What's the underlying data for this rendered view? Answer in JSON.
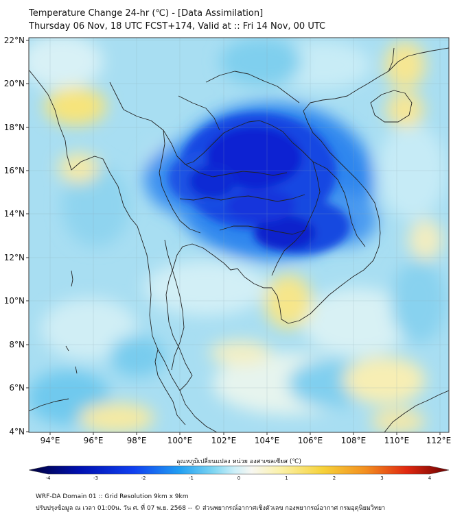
{
  "title_line1": "Temperature Change 24-hr (℃) - [Data Assimilation]",
  "title_line2": "Thursday 06 Nov, 18 UTC FCST+174, Valid at :: Fri 14 Nov, 00 UTC",
  "map": {
    "lon_range": [
      93,
      112.4
    ],
    "lat_range": [
      4,
      22.2
    ],
    "lat_ticks": [
      "22°N",
      "20°N",
      "18°N",
      "16°N",
      "14°N",
      "12°N",
      "10°N",
      "8°N",
      "6°N",
      "4°N"
    ],
    "lon_ticks": [
      "94°E",
      "96°E",
      "98°E",
      "100°E",
      "102°E",
      "104°E",
      "106°E",
      "108°E",
      "110°E",
      "112°E"
    ],
    "lat_values": [
      22,
      20,
      18,
      16,
      14,
      12,
      10,
      8,
      6,
      4
    ],
    "lon_values": [
      94,
      96,
      98,
      100,
      102,
      104,
      106,
      108,
      110,
      112
    ]
  },
  "colorbar": {
    "title": "อุณหภูมิเปลี่ยนแปลง หน่วย องศาเซลเซียส (℃)",
    "labels": [
      "-4",
      "-3",
      "-2",
      "-1",
      "0",
      "1",
      "2",
      "3",
      "4"
    ],
    "values": [
      -4,
      -3,
      -2,
      -1,
      0,
      1,
      2,
      3,
      4
    ]
  },
  "footer_line1": "WRF-DA Domain 01 :: Grid Resolution 9km x 9km",
  "footer_line2": "ปรับปรุงข้อมูล ณ เวลา 01:00น. วัน ศ. ที่ 07 พ.ย. 2568 -- © ส่วนพยากรณ์อากาศเชิงตัวเลข กองพยากรณ์อากาศ กรมอุตุนิยมวิทยา",
  "colors": {
    "background_field": "#9fdcf2",
    "strong_cooling": "#0a1fd6",
    "warming": "#f7eea0",
    "coastline": "#222222"
  }
}
